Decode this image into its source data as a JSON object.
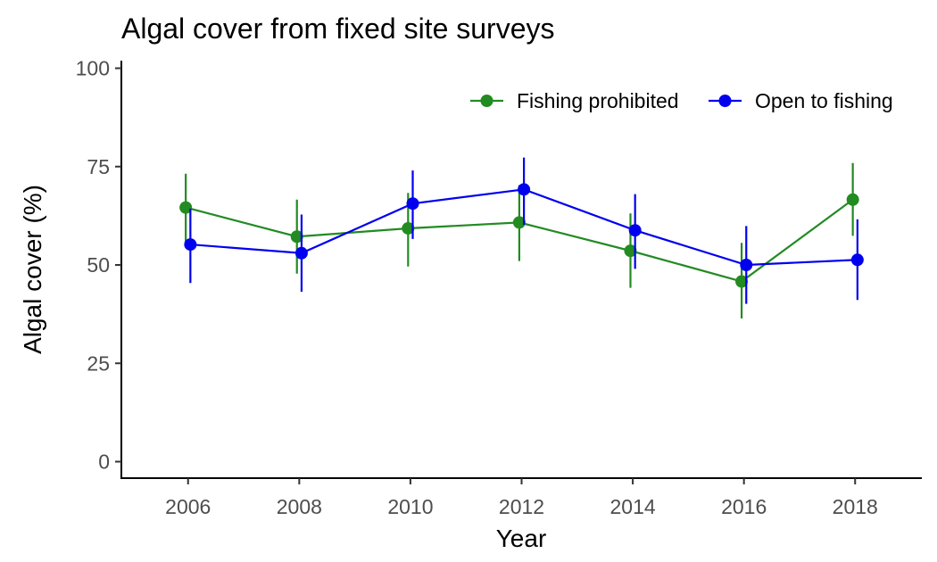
{
  "chart_data": {
    "type": "line",
    "title": "Algal cover from fixed site surveys",
    "xlabel": "Year",
    "ylabel": "Algal cover (%)",
    "x": [
      2006,
      2008,
      2010,
      2012,
      2014,
      2016,
      2018
    ],
    "xticks": [
      "2006",
      "2008",
      "2010",
      "2012",
      "2014",
      "2016",
      "2018"
    ],
    "yticks": [
      "0",
      "25",
      "50",
      "75",
      "100"
    ],
    "ylim": [
      0,
      100
    ],
    "xlim": [
      2004.8,
      2019.2
    ],
    "grid": false,
    "legend_position": "top-right",
    "series": [
      {
        "name": "Fishing prohibited",
        "color": "#228B22",
        "values": [
          64.6,
          57.2,
          59.3,
          60.8,
          53.6,
          45.8,
          66.6
        ],
        "error_low": [
          55.6,
          47.8,
          49.6,
          51.0,
          44.2,
          36.4,
          57.4
        ],
        "error_high": [
          73.2,
          66.6,
          68.3,
          70.3,
          63.1,
          55.6,
          75.9
        ]
      },
      {
        "name": "Open to fishing",
        "color": "#0000EE",
        "values": [
          55.2,
          53.0,
          65.6,
          69.2,
          58.8,
          50.0,
          51.3
        ],
        "error_low": [
          45.4,
          43.2,
          56.6,
          60.2,
          49.0,
          40.1,
          41.1
        ],
        "error_high": [
          64.3,
          62.8,
          74.0,
          77.3,
          68.0,
          59.9,
          61.6
        ]
      }
    ]
  }
}
